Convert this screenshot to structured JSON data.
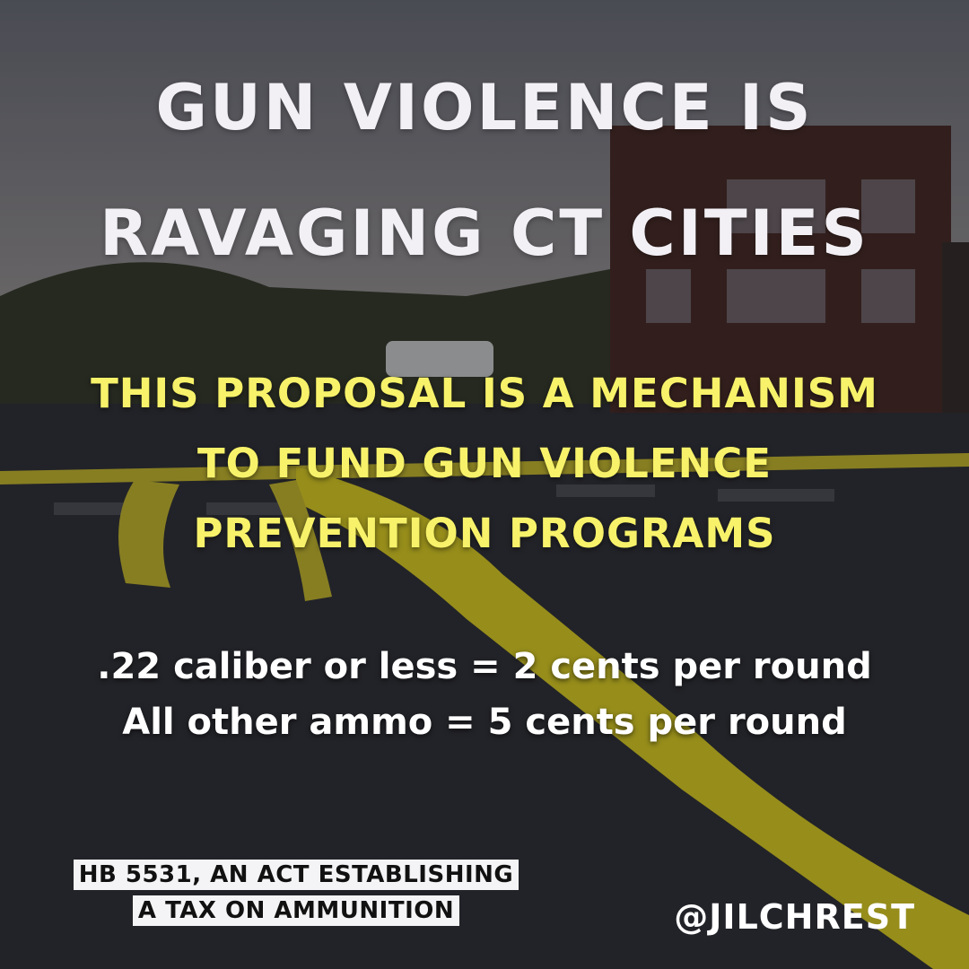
{
  "headline": {
    "lines": [
      "GUN VIOLENCE IS",
      "RAVAGING CT CITIES"
    ]
  },
  "subhead": {
    "lines": [
      "THIS PROPOSAL IS A MECHANISM",
      "TO FUND GUN VIOLENCE",
      "PREVENTION PROGRAMS"
    ]
  },
  "rates": {
    "lines": [
      ".22 caliber or less = 2 cents per round",
      "All other ammo = 5 cents per round"
    ]
  },
  "footer": {
    "bill": [
      "HB 5531, AN ACT ESTABLISHING",
      "A TAX ON AMMUNITION"
    ],
    "handle": "@JILCHREST"
  }
}
